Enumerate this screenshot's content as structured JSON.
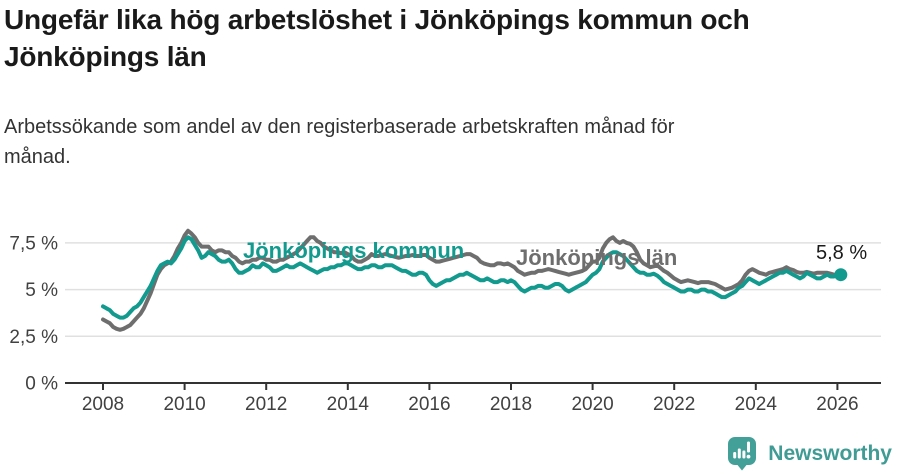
{
  "header": {
    "title": "Ungefär lika hög arbetslöshet i Jönköpings kommun och Jönköpings län",
    "subtitle": "Arbetssökande som andel av den registerbaserade arbetskraften månad för månad."
  },
  "chart_data": {
    "type": "line",
    "title": "Ungefär lika hög arbetslöshet i Jönköpings kommun och Jönköpings län",
    "unit": "%",
    "x_axis": {
      "start": "2008-01",
      "end": "2026-02",
      "frequency": "monthly",
      "tick_years": [
        2008,
        2010,
        2012,
        2014,
        2016,
        2018,
        2020,
        2022,
        2024,
        2026
      ]
    },
    "y_axis": {
      "max": 8.6,
      "ticks": [
        {
          "value": 7.5,
          "label": "7,5 %"
        },
        {
          "value": 5,
          "label": "5 %"
        },
        {
          "value": 2.5,
          "label": "2,5 %"
        },
        {
          "value": 0,
          "label": "0 %"
        }
      ]
    },
    "grid": true,
    "legend": "inline-labels",
    "series": [
      {
        "name": "Jönköpings kommun",
        "color": "#129a8e",
        "values": [
          4.1,
          4.0,
          3.9,
          3.7,
          3.6,
          3.5,
          3.5,
          3.6,
          3.8,
          4.0,
          4.1,
          4.3,
          4.6,
          4.9,
          5.2,
          5.6,
          6.0,
          6.3,
          6.4,
          6.5,
          6.4,
          6.6,
          6.9,
          7.2,
          7.6,
          7.8,
          7.7,
          7.4,
          7.1,
          6.7,
          6.8,
          7.0,
          6.9,
          6.8,
          6.6,
          6.5,
          6.5,
          6.6,
          6.4,
          6.1,
          5.9,
          5.9,
          6.0,
          6.1,
          6.3,
          6.2,
          6.2,
          6.4,
          6.3,
          6.2,
          6.0,
          6.0,
          6.1,
          6.2,
          6.3,
          6.2,
          6.2,
          6.3,
          6.4,
          6.3,
          6.2,
          6.1,
          6.0,
          5.9,
          6.0,
          6.1,
          6.1,
          6.2,
          6.2,
          6.3,
          6.3,
          6.4,
          6.4,
          6.3,
          6.2,
          6.1,
          6.1,
          6.2,
          6.2,
          6.3,
          6.3,
          6.2,
          6.2,
          6.3,
          6.3,
          6.3,
          6.2,
          6.1,
          6.0,
          6.0,
          5.9,
          5.8,
          5.8,
          5.9,
          5.9,
          5.8,
          5.5,
          5.3,
          5.2,
          5.3,
          5.4,
          5.5,
          5.5,
          5.6,
          5.7,
          5.8,
          5.8,
          5.9,
          5.8,
          5.7,
          5.6,
          5.5,
          5.5,
          5.6,
          5.5,
          5.4,
          5.4,
          5.5,
          5.5,
          5.4,
          5.5,
          5.4,
          5.2,
          5.0,
          4.9,
          5.0,
          5.1,
          5.1,
          5.2,
          5.2,
          5.1,
          5.1,
          5.2,
          5.3,
          5.3,
          5.2,
          5.0,
          4.9,
          5.0,
          5.1,
          5.2,
          5.3,
          5.4,
          5.6,
          5.8,
          5.9,
          6.1,
          6.5,
          6.7,
          6.9,
          7.0,
          7.0,
          6.9,
          6.8,
          6.6,
          6.4,
          6.2,
          6.0,
          5.9,
          5.9,
          5.8,
          5.8,
          5.85,
          5.75,
          5.6,
          5.4,
          5.3,
          5.2,
          5.1,
          5.0,
          4.9,
          4.9,
          5.0,
          5.0,
          4.9,
          4.9,
          5.0,
          5.0,
          4.9,
          4.9,
          4.8,
          4.7,
          4.6,
          4.6,
          4.7,
          4.8,
          4.9,
          5.1,
          5.2,
          5.4,
          5.6,
          5.5,
          5.4,
          5.3,
          5.4,
          5.5,
          5.6,
          5.7,
          5.8,
          5.9,
          5.9,
          6.0,
          5.9,
          5.8,
          5.7,
          5.6,
          5.7,
          5.9,
          5.8,
          5.7,
          5.6,
          5.6,
          5.7,
          5.8,
          5.7,
          5.7,
          5.8,
          5.8
        ]
      },
      {
        "name": "Jönköpings län",
        "color": "#6e6e6e",
        "values": [
          3.4,
          3.3,
          3.2,
          3.0,
          2.9,
          2.85,
          2.9,
          3.0,
          3.1,
          3.3,
          3.5,
          3.7,
          4.0,
          4.4,
          4.8,
          5.3,
          5.8,
          6.1,
          6.3,
          6.4,
          6.5,
          6.8,
          7.2,
          7.5,
          7.9,
          8.15,
          8.0,
          7.8,
          7.5,
          7.3,
          7.3,
          7.3,
          7.1,
          7.0,
          7.1,
          7.1,
          7.0,
          7.0,
          6.8,
          6.7,
          6.5,
          6.4,
          6.5,
          6.5,
          6.6,
          6.6,
          6.7,
          6.7,
          6.6,
          6.6,
          6.5,
          6.5,
          6.6,
          6.6,
          6.7,
          6.8,
          6.9,
          7.0,
          7.2,
          7.4,
          7.6,
          7.8,
          7.8,
          7.6,
          7.5,
          7.3,
          7.2,
          7.1,
          7.0,
          7.0,
          6.95,
          7.0,
          6.9,
          6.8,
          6.6,
          6.5,
          6.5,
          6.6,
          6.7,
          6.9,
          6.8,
          6.8,
          6.85,
          6.9,
          6.85,
          6.8,
          6.75,
          6.7,
          6.75,
          6.8,
          6.8,
          6.85,
          6.8,
          6.8,
          6.85,
          6.85,
          6.7,
          6.6,
          6.5,
          6.5,
          6.55,
          6.6,
          6.65,
          6.7,
          6.75,
          6.8,
          6.85,
          6.9,
          6.9,
          6.8,
          6.7,
          6.5,
          6.4,
          6.35,
          6.3,
          6.3,
          6.4,
          6.4,
          6.35,
          6.4,
          6.3,
          6.2,
          6.0,
          5.9,
          5.8,
          5.85,
          5.9,
          5.9,
          6.0,
          6.0,
          6.05,
          6.1,
          6.05,
          6.0,
          5.95,
          5.9,
          5.85,
          5.8,
          5.85,
          5.9,
          5.95,
          6.0,
          6.1,
          6.3,
          6.5,
          6.5,
          6.7,
          7.2,
          7.5,
          7.7,
          7.8,
          7.6,
          7.5,
          7.6,
          7.5,
          7.45,
          7.3,
          7.0,
          6.6,
          6.4,
          6.3,
          6.2,
          6.25,
          6.3,
          6.15,
          6.0,
          5.9,
          5.75,
          5.6,
          5.5,
          5.4,
          5.45,
          5.5,
          5.45,
          5.4,
          5.35,
          5.4,
          5.4,
          5.4,
          5.35,
          5.3,
          5.2,
          5.1,
          5.0,
          5.05,
          5.1,
          5.2,
          5.3,
          5.5,
          5.8,
          6.0,
          6.1,
          6.0,
          5.9,
          5.85,
          5.8,
          5.9,
          5.95,
          6.0,
          6.05,
          6.1,
          6.2,
          6.1,
          6.05,
          5.95,
          5.9,
          5.9,
          5.95,
          5.9,
          5.85,
          5.9,
          5.9,
          5.9,
          5.9,
          5.85,
          5.8,
          5.8,
          5.8
        ]
      }
    ],
    "end_label": {
      "series": "Jönköpings kommun",
      "text": "5,8 %",
      "value": 5.8
    }
  },
  "branding": {
    "name": "Newsworthy",
    "color": "#3f9b94",
    "icon_color": "#43a098"
  }
}
